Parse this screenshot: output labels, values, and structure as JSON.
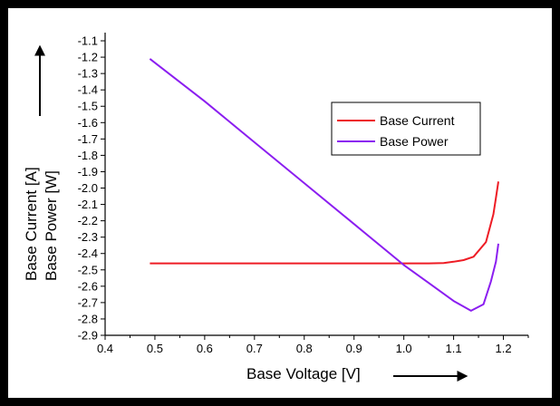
{
  "chart_data": {
    "type": "line",
    "xlabel": "Base Voltage [V]",
    "ylabel_lines": [
      "Base Current [A]",
      "Base Power [W]"
    ],
    "xlim": [
      0.4,
      1.25
    ],
    "ylim": [
      -2.9,
      -1.05
    ],
    "xticks": [
      0.4,
      0.5,
      0.6,
      0.7,
      0.8,
      0.9,
      1.0,
      1.1,
      1.2
    ],
    "xtick_labels": [
      "0.4",
      "0.5",
      "0.6",
      "0.7",
      "0.8",
      "0.9",
      "1.0",
      "1.1",
      "1.2"
    ],
    "yticks": [
      -1.1,
      -1.2,
      -1.3,
      -1.4,
      -1.5,
      -1.6,
      -1.7,
      -1.8,
      -1.9,
      -2.0,
      -2.1,
      -2.2,
      -2.3,
      -2.4,
      -2.5,
      -2.6,
      -2.7,
      -2.8,
      -2.9
    ],
    "ytick_labels": [
      "-1.1",
      "-1.2",
      "-1.3",
      "-1.4",
      "-1.5",
      "-1.6",
      "-1.7",
      "-1.8",
      "-1.9",
      "-2.0",
      "-2.1",
      "-2.2",
      "-2.3",
      "-2.4",
      "-2.5",
      "-2.6",
      "-2.7",
      "-2.8",
      "-2.9"
    ],
    "grid": false,
    "legend_position": "upper-right",
    "series": [
      {
        "name": "Base Current",
        "color": "#ee1c25",
        "x": [
          0.49,
          0.6,
          0.7,
          0.8,
          0.9,
          1.0,
          1.05,
          1.08,
          1.1,
          1.12,
          1.14,
          1.165,
          1.18,
          1.185,
          1.19
        ],
        "y": [
          -2.46,
          -2.46,
          -2.46,
          -2.46,
          -2.46,
          -2.46,
          -2.46,
          -2.458,
          -2.45,
          -2.44,
          -2.42,
          -2.33,
          -2.16,
          -2.06,
          -1.96
        ]
      },
      {
        "name": "Base Power",
        "color": "#8b1ef0",
        "x": [
          0.49,
          0.6,
          0.7,
          0.8,
          0.9,
          1.0,
          1.05,
          1.1,
          1.135,
          1.16,
          1.175,
          1.185,
          1.19
        ],
        "y": [
          -1.21,
          -1.47,
          -1.72,
          -1.97,
          -2.22,
          -2.47,
          -2.58,
          -2.69,
          -2.75,
          -2.71,
          -2.57,
          -2.45,
          -2.34
        ]
      }
    ]
  }
}
